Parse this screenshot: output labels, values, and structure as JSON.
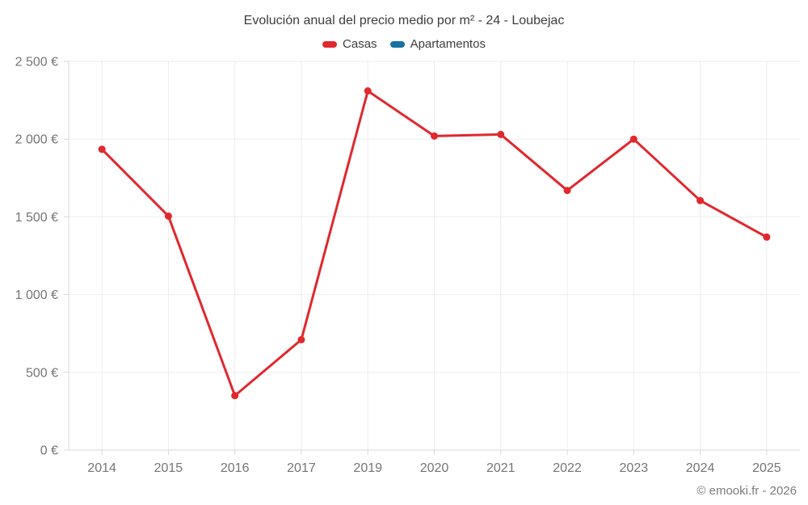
{
  "chart_data": {
    "type": "line",
    "title": "Evolución anual del precio medio por m² - 24 - Loubejac",
    "categories": [
      "2014",
      "2015",
      "2016",
      "2017",
      "2019",
      "2020",
      "2021",
      "2022",
      "2023",
      "2024",
      "2025"
    ],
    "series": [
      {
        "name": "Casas",
        "color": "#e0282e",
        "values": [
          1935,
          1505,
          350,
          710,
          2310,
          2020,
          2030,
          1670,
          2000,
          1605,
          1370
        ]
      },
      {
        "name": "Apartamentos",
        "color": "#17719f",
        "values": []
      }
    ],
    "xlabel": "",
    "ylabel": "",
    "ylim": [
      0,
      2500
    ],
    "ytick_step": 500,
    "ytick_labels": [
      "0 €",
      "500 €",
      "1 000 €",
      "1 500 €",
      "2 000 €",
      "2 500 €"
    ],
    "grid": true,
    "legend_position": "top",
    "marker": "circle"
  },
  "style": {
    "grid_color": "#ededed",
    "axis_color": "#d9d9d9",
    "tick_label_color": "#757575",
    "title_color": "#3d3d3d",
    "footer_color": "#7c7c7c",
    "background": "#ffffff"
  },
  "footer": {
    "credit": "© emooki.fr - 2026"
  }
}
